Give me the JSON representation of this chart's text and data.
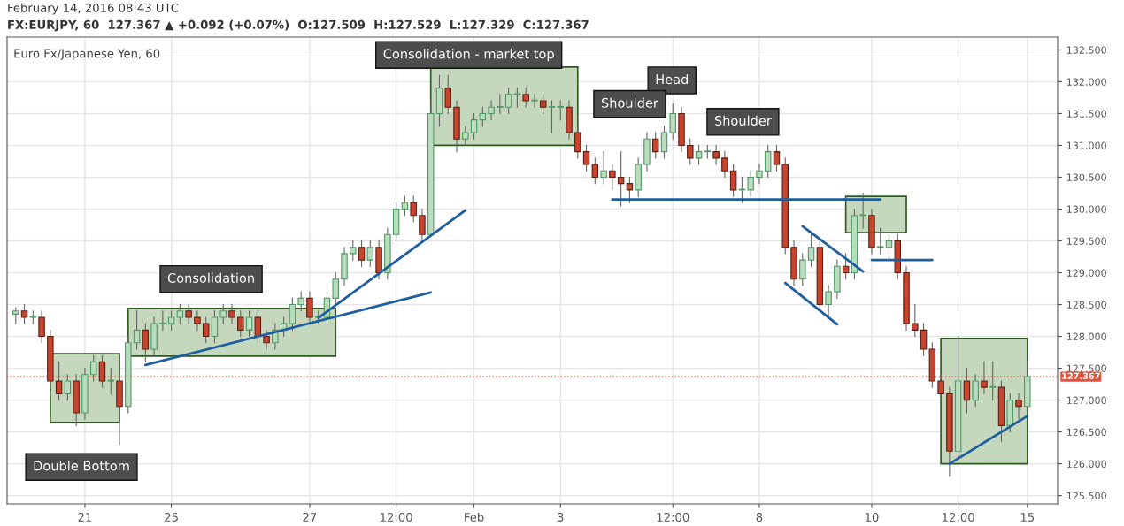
{
  "chart_data": {
    "type": "candlestick",
    "title": "Euro Fx/Japanese Yen, 60",
    "subtitle": "FX:EURJPY, 60  127.367 ▲ +0.092 (+0.07%)  O:127.509  H:127.529  L:127.329  C:127.367",
    "categories": [
      null,
      null,
      null,
      null,
      null,
      null,
      null,
      null,
      "21",
      null,
      null,
      null,
      null,
      null,
      null,
      null,
      null,
      null,
      "25",
      null,
      null,
      null,
      null,
      null,
      null,
      null,
      null,
      null,
      null,
      null,
      null,
      null,
      null,
      null,
      "27",
      null,
      null,
      null,
      null,
      null,
      null,
      null,
      null,
      null,
      "12:00",
      null,
      null,
      null,
      null,
      null,
      null,
      null,
      null,
      "Feb",
      null,
      null,
      null,
      null,
      null,
      null,
      null,
      null,
      null,
      "3",
      null,
      null,
      null,
      null,
      null,
      null,
      null,
      null,
      null,
      null,
      null,
      null,
      "12:00",
      null,
      null,
      null,
      null,
      null,
      null,
      null,
      null,
      null,
      "8",
      null,
      null,
      null,
      null,
      null,
      null,
      null,
      null,
      null,
      null,
      null,
      null,
      "10",
      null,
      null,
      null,
      null,
      null,
      null,
      null,
      null,
      null,
      "12:00",
      null,
      null,
      null,
      null,
      null,
      null,
      null,
      "15"
    ],
    "ohlc": [
      [
        128.35,
        128.45,
        128.2,
        128.4
      ],
      [
        128.4,
        128.5,
        128.2,
        128.3
      ],
      [
        128.3,
        128.4,
        128.2,
        128.3
      ],
      [
        128.3,
        128.4,
        127.9,
        128.0
      ],
      [
        128.0,
        128.1,
        127.2,
        127.3
      ],
      [
        127.3,
        127.6,
        127.0,
        127.1
      ],
      [
        127.1,
        127.4,
        127.0,
        127.3
      ],
      [
        127.3,
        127.4,
        126.6,
        126.8
      ],
      [
        126.8,
        127.5,
        126.7,
        127.4
      ],
      [
        127.4,
        127.7,
        127.3,
        127.6
      ],
      [
        127.6,
        127.7,
        127.2,
        127.3
      ],
      [
        127.3,
        127.5,
        127.1,
        127.3
      ],
      [
        127.3,
        127.4,
        126.3,
        126.9
      ],
      [
        126.9,
        128.0,
        126.8,
        127.9
      ],
      [
        127.9,
        128.4,
        127.8,
        128.1
      ],
      [
        128.1,
        128.2,
        127.6,
        127.8
      ],
      [
        127.8,
        128.3,
        127.7,
        128.2
      ],
      [
        128.2,
        128.4,
        128.1,
        128.2
      ],
      [
        128.2,
        128.4,
        128.1,
        128.3
      ],
      [
        128.3,
        128.5,
        128.2,
        128.4
      ],
      [
        128.4,
        128.5,
        128.2,
        128.3
      ],
      [
        128.3,
        128.4,
        128.1,
        128.2
      ],
      [
        128.2,
        128.3,
        127.9,
        128.0
      ],
      [
        128.0,
        128.4,
        127.9,
        128.3
      ],
      [
        128.3,
        128.5,
        128.2,
        128.4
      ],
      [
        128.4,
        128.5,
        128.2,
        128.3
      ],
      [
        128.3,
        128.4,
        128.0,
        128.1
      ],
      [
        128.1,
        128.4,
        128.0,
        128.3
      ],
      [
        128.3,
        128.4,
        127.9,
        128.0
      ],
      [
        128.0,
        128.1,
        127.8,
        127.9
      ],
      [
        127.9,
        128.2,
        127.8,
        128.1
      ],
      [
        128.1,
        128.3,
        128.0,
        128.2
      ],
      [
        128.2,
        128.6,
        128.1,
        128.5
      ],
      [
        128.5,
        128.7,
        128.4,
        128.6
      ],
      [
        128.6,
        128.7,
        128.2,
        128.3
      ],
      [
        128.3,
        128.4,
        128.2,
        128.3
      ],
      [
        128.3,
        128.7,
        128.2,
        128.6
      ],
      [
        128.6,
        129.0,
        128.5,
        128.9
      ],
      [
        128.9,
        129.4,
        128.8,
        129.3
      ],
      [
        129.3,
        129.5,
        129.2,
        129.4
      ],
      [
        129.4,
        129.5,
        129.1,
        129.2
      ],
      [
        129.2,
        129.5,
        129.1,
        129.4
      ],
      [
        129.4,
        129.5,
        128.9,
        129.0
      ],
      [
        129.0,
        129.7,
        128.9,
        129.6
      ],
      [
        129.6,
        130.1,
        129.5,
        130.0
      ],
      [
        130.0,
        130.2,
        129.9,
        130.1
      ],
      [
        130.1,
        130.2,
        129.8,
        129.9
      ],
      [
        129.9,
        130.0,
        129.5,
        129.6
      ],
      [
        129.6,
        131.7,
        129.6,
        131.5
      ],
      [
        131.5,
        132.1,
        131.3,
        131.9
      ],
      [
        131.9,
        132.1,
        131.5,
        131.6
      ],
      [
        131.6,
        131.7,
        130.9,
        131.1
      ],
      [
        131.1,
        131.3,
        131.0,
        131.2
      ],
      [
        131.2,
        131.5,
        131.1,
        131.4
      ],
      [
        131.4,
        131.6,
        131.3,
        131.5
      ],
      [
        131.5,
        131.7,
        131.4,
        131.6
      ],
      [
        131.6,
        131.8,
        131.5,
        131.6
      ],
      [
        131.6,
        131.9,
        131.5,
        131.8
      ],
      [
        131.8,
        131.9,
        131.6,
        131.8
      ],
      [
        131.8,
        131.9,
        131.6,
        131.7
      ],
      [
        131.7,
        131.8,
        131.6,
        131.7
      ],
      [
        131.7,
        131.8,
        131.5,
        131.6
      ],
      [
        131.6,
        131.7,
        131.2,
        131.6
      ],
      [
        131.6,
        131.7,
        131.4,
        131.6
      ],
      [
        131.6,
        131.7,
        131.1,
        131.2
      ],
      [
        131.2,
        131.3,
        130.8,
        130.9
      ],
      [
        130.9,
        131.0,
        130.6,
        130.7
      ],
      [
        130.7,
        130.8,
        130.4,
        130.5
      ],
      [
        130.5,
        130.9,
        130.4,
        130.6
      ],
      [
        130.6,
        130.7,
        130.3,
        130.5
      ],
      [
        130.5,
        130.9,
        130.05,
        130.4
      ],
      [
        130.4,
        130.5,
        130.1,
        130.3
      ],
      [
        130.3,
        130.8,
        130.2,
        130.7
      ],
      [
        130.7,
        131.2,
        130.6,
        131.1
      ],
      [
        131.1,
        131.2,
        130.8,
        130.9
      ],
      [
        130.9,
        131.3,
        130.8,
        131.2
      ],
      [
        131.2,
        131.65,
        131.1,
        131.5
      ],
      [
        131.5,
        131.6,
        130.9,
        131.0
      ],
      [
        131.0,
        131.1,
        130.7,
        130.8
      ],
      [
        130.8,
        131.0,
        130.7,
        130.9
      ],
      [
        130.9,
        131.0,
        130.8,
        130.9
      ],
      [
        130.9,
        131.0,
        130.7,
        130.8
      ],
      [
        130.8,
        130.9,
        130.5,
        130.6
      ],
      [
        130.6,
        130.7,
        130.2,
        130.3
      ],
      [
        130.3,
        130.5,
        130.1,
        130.3
      ],
      [
        130.3,
        130.6,
        130.2,
        130.5
      ],
      [
        130.5,
        130.7,
        130.4,
        130.6
      ],
      [
        130.6,
        131.0,
        130.5,
        130.9
      ],
      [
        130.9,
        131.0,
        130.6,
        130.7
      ],
      [
        130.7,
        130.8,
        129.3,
        129.4
      ],
      [
        129.4,
        129.5,
        128.8,
        128.9
      ],
      [
        128.9,
        129.3,
        128.8,
        129.2
      ],
      [
        129.2,
        129.6,
        129.1,
        129.4
      ],
      [
        129.4,
        129.5,
        128.4,
        128.5
      ],
      [
        128.5,
        128.8,
        128.3,
        128.7
      ],
      [
        128.7,
        129.2,
        128.6,
        129.1
      ],
      [
        129.1,
        129.3,
        128.9,
        129.0
      ],
      [
        129.0,
        130.0,
        128.9,
        129.9
      ],
      [
        129.9,
        130.25,
        129.7,
        129.9
      ],
      [
        129.9,
        130.0,
        129.3,
        129.4
      ],
      [
        129.4,
        129.7,
        129.3,
        129.4
      ],
      [
        129.4,
        129.6,
        129.2,
        129.5
      ],
      [
        129.5,
        129.6,
        128.9,
        129.0
      ],
      [
        129.0,
        129.1,
        128.1,
        128.2
      ],
      [
        128.2,
        128.5,
        128.0,
        128.1
      ],
      [
        128.1,
        128.2,
        127.7,
        127.8
      ],
      [
        127.8,
        127.9,
        127.2,
        127.3
      ],
      [
        127.3,
        127.4,
        127.0,
        127.1
      ],
      [
        127.1,
        127.2,
        125.8,
        126.2
      ],
      [
        126.2,
        128.0,
        126.1,
        127.3
      ],
      [
        127.3,
        127.5,
        126.8,
        127.0
      ],
      [
        127.0,
        127.4,
        126.9,
        127.3
      ],
      [
        127.3,
        127.6,
        127.1,
        127.2
      ],
      [
        127.2,
        127.6,
        127.0,
        127.2
      ],
      [
        127.2,
        127.3,
        126.35,
        126.6
      ],
      [
        126.6,
        127.1,
        126.5,
        127.0
      ],
      [
        127.0,
        127.1,
        126.7,
        126.9
      ],
      [
        126.9,
        127.6,
        126.8,
        127.37
      ]
    ],
    "series": [
      {
        "type": "line",
        "color": "#1f5fa0",
        "values": [
          null,
          null,
          null,
          null,
          null,
          null,
          null,
          null,
          null,
          null,
          null,
          null,
          null,
          null,
          null,
          127.55,
          null,
          null,
          null,
          null,
          null,
          null,
          null,
          null,
          null,
          null,
          null,
          null,
          null,
          null,
          null,
          null,
          null,
          null,
          null,
          null,
          null,
          null,
          null,
          null,
          null,
          null,
          null,
          null,
          null,
          null,
          null,
          null,
          128.69,
          null,
          null,
          null,
          null,
          null,
          null,
          null,
          null,
          null,
          null,
          null,
          null,
          null,
          null,
          null,
          null,
          null,
          null,
          null,
          null,
          null,
          null,
          null,
          null,
          null,
          null,
          null,
          null,
          null,
          null,
          null,
          null,
          null,
          null,
          null,
          null,
          null,
          null,
          null,
          null,
          null,
          null,
          null,
          null,
          null,
          null,
          null,
          null,
          null,
          null,
          null,
          null,
          null,
          null,
          null,
          null,
          null,
          null,
          null,
          null,
          null,
          null,
          null,
          null,
          null,
          null,
          null,
          null,
          null
        ]
      },
      {
        "type": "line",
        "color": "#1f5fa0",
        "values": [
          null,
          null,
          null,
          null,
          null,
          null,
          null,
          null,
          null,
          null,
          null,
          null,
          null,
          null,
          null,
          null,
          null,
          null,
          null,
          null,
          null,
          null,
          null,
          null,
          null,
          null,
          null,
          null,
          null,
          null,
          null,
          null,
          null,
          null,
          null,
          128.29,
          null,
          null,
          null,
          null,
          null,
          null,
          null,
          null,
          null,
          null,
          null,
          null,
          null,
          null,
          null,
          null,
          129.98,
          null,
          null,
          null,
          null,
          null,
          null,
          null,
          null,
          null,
          null,
          null,
          null,
          null,
          null,
          null,
          null,
          null,
          null,
          null,
          null,
          null,
          null,
          null,
          null,
          null,
          null,
          null,
          null,
          null,
          null,
          null,
          null,
          null,
          null,
          null,
          null,
          null,
          null,
          null,
          null,
          null,
          null,
          null,
          null,
          null,
          null,
          null,
          null,
          null,
          null,
          null,
          null,
          null,
          null,
          null,
          null,
          null,
          null,
          null,
          null,
          null,
          null,
          null,
          null,
          null
        ]
      },
      {
        "type": "line",
        "color": "#1f5fa0",
        "values": [
          null,
          null,
          null,
          null,
          null,
          null,
          null,
          null,
          null,
          null,
          null,
          null,
          null,
          null,
          null,
          null,
          null,
          null,
          null,
          null,
          null,
          null,
          null,
          null,
          null,
          null,
          null,
          null,
          null,
          null,
          null,
          null,
          null,
          null,
          null,
          null,
          null,
          null,
          null,
          null,
          null,
          null,
          null,
          null,
          null,
          null,
          null,
          null,
          null,
          null,
          null,
          null,
          null,
          null,
          null,
          null,
          null,
          null,
          null,
          null,
          null,
          null,
          null,
          null,
          null,
          null,
          null,
          null,
          null,
          130.15,
          null,
          null,
          null,
          null,
          null,
          null,
          null,
          null,
          null,
          null,
          null,
          null,
          null,
          null,
          null,
          null,
          null,
          null,
          null,
          null,
          null,
          null,
          null,
          null,
          null,
          null,
          null,
          null,
          null,
          null,
          130.15,
          null,
          null,
          null,
          null,
          null,
          null,
          null,
          null,
          null,
          null,
          null,
          null,
          null,
          null,
          null,
          null,
          null
        ]
      },
      {
        "type": "line",
        "color": "#1f5fa0",
        "values": [
          null,
          null,
          null,
          null,
          null,
          null,
          null,
          null,
          null,
          null,
          null,
          null,
          null,
          null,
          null,
          null,
          null,
          null,
          null,
          null,
          null,
          null,
          null,
          null,
          null,
          null,
          null,
          null,
          null,
          null,
          null,
          null,
          null,
          null,
          null,
          null,
          null,
          null,
          null,
          null,
          null,
          null,
          null,
          null,
          null,
          null,
          null,
          null,
          null,
          null,
          null,
          null,
          null,
          null,
          null,
          null,
          null,
          null,
          null,
          null,
          null,
          null,
          null,
          null,
          null,
          null,
          null,
          null,
          null,
          null,
          null,
          null,
          null,
          null,
          null,
          null,
          null,
          null,
          null,
          null,
          null,
          null,
          null,
          null,
          null,
          null,
          null,
          null,
          null,
          null,
          null,
          null,
          null,
          null,
          null,
          null,
          null,
          null,
          null,
          129.2,
          null,
          null,
          null,
          null,
          null,
          null,
          129.2,
          null,
          null,
          null,
          null,
          null,
          null,
          null,
          null,
          null,
          null,
          null
        ]
      },
      {
        "type": "line",
        "color": "#1f5fa0",
        "values": [
          null,
          null,
          null,
          null,
          null,
          null,
          null,
          null,
          null,
          null,
          null,
          null,
          null,
          null,
          null,
          null,
          null,
          null,
          null,
          null,
          null,
          null,
          null,
          null,
          null,
          null,
          null,
          null,
          null,
          null,
          null,
          null,
          null,
          null,
          null,
          null,
          null,
          null,
          null,
          null,
          null,
          null,
          null,
          null,
          null,
          null,
          null,
          null,
          null,
          null,
          null,
          null,
          null,
          null,
          null,
          null,
          null,
          null,
          null,
          null,
          null,
          null,
          null,
          null,
          null,
          null,
          null,
          null,
          null,
          null,
          null,
          null,
          null,
          null,
          null,
          null,
          null,
          null,
          null,
          null,
          null,
          null,
          null,
          null,
          null,
          null,
          null,
          null,
          null,
          null,
          null,
          129.73,
          null,
          null,
          null,
          null,
          null,
          null,
          129.02,
          null,
          null,
          null,
          null,
          null,
          null,
          null,
          null,
          null,
          null,
          null,
          null,
          null,
          null,
          null,
          null,
          null,
          null,
          null
        ]
      },
      {
        "type": "line",
        "color": "#1f5fa0",
        "values": [
          null,
          null,
          null,
          null,
          null,
          null,
          null,
          null,
          null,
          null,
          null,
          null,
          null,
          null,
          null,
          null,
          null,
          null,
          null,
          null,
          null,
          null,
          null,
          null,
          null,
          null,
          null,
          null,
          null,
          null,
          null,
          null,
          null,
          null,
          null,
          null,
          null,
          null,
          null,
          null,
          null,
          null,
          null,
          null,
          null,
          null,
          null,
          null,
          null,
          null,
          null,
          null,
          null,
          null,
          null,
          null,
          null,
          null,
          null,
          null,
          null,
          null,
          null,
          null,
          null,
          null,
          null,
          null,
          null,
          null,
          null,
          null,
          null,
          null,
          null,
          null,
          null,
          null,
          null,
          null,
          null,
          null,
          null,
          null,
          null,
          null,
          null,
          null,
          null,
          128.84,
          null,
          null,
          null,
          null,
          null,
          128.19,
          null,
          null,
          null,
          null,
          null,
          null,
          null,
          null,
          null,
          null,
          null,
          null,
          null,
          null,
          null,
          null,
          null,
          null,
          null,
          null,
          null,
          null
        ]
      },
      {
        "type": "line",
        "color": "#1f5fa0",
        "values": [
          null,
          null,
          null,
          null,
          null,
          null,
          null,
          null,
          null,
          null,
          null,
          null,
          null,
          null,
          null,
          null,
          null,
          null,
          null,
          null,
          null,
          null,
          null,
          null,
          null,
          null,
          null,
          null,
          null,
          null,
          null,
          null,
          null,
          null,
          null,
          null,
          null,
          null,
          null,
          null,
          null,
          null,
          null,
          null,
          null,
          null,
          null,
          null,
          null,
          null,
          null,
          null,
          null,
          null,
          null,
          null,
          null,
          null,
          null,
          null,
          null,
          null,
          null,
          null,
          null,
          null,
          null,
          null,
          null,
          null,
          null,
          null,
          null,
          null,
          null,
          null,
          null,
          null,
          null,
          null,
          null,
          null,
          null,
          null,
          null,
          null,
          null,
          null,
          null,
          null,
          null,
          null,
          null,
          null,
          null,
          null,
          null,
          null,
          null,
          null,
          null,
          null,
          null,
          null,
          null,
          null,
          null,
          null,
          126.0,
          null,
          null,
          null,
          null,
          null,
          null,
          null,
          null,
          126.75
        ]
      }
    ],
    "ref_lines": [
      {
        "axis": "y",
        "value": 127.367,
        "label": "127.367",
        "color": "#e0533b",
        "line_style": "dotted"
      }
    ],
    "annotations": [
      "February 14, 2016 08:43 UTC",
      "Double Bottom",
      "Consolidation",
      "Consolidation - market top",
      "Head",
      "Shoulder",
      "Shoulder"
    ],
    "ylim": [
      125.37,
      132.7
    ],
    "yticks": [
      {
        "value": 125.5,
        "label": "125.500"
      },
      {
        "value": 126,
        "label": "126.000"
      },
      {
        "value": 126.5,
        "label": "126.500"
      },
      {
        "value": 127,
        "label": "127.000"
      },
      {
        "value": 127.5,
        "label": "127.500"
      },
      {
        "value": 128,
        "label": "128.000"
      },
      {
        "value": 128.5,
        "label": "128.500"
      },
      {
        "value": 129,
        "label": "129.000"
      },
      {
        "value": 129.5,
        "label": "129.500"
      },
      {
        "value": 130,
        "label": "130.000"
      },
      {
        "value": 130.5,
        "label": "130.500"
      },
      {
        "value": 131,
        "label": "131.000"
      },
      {
        "value": 131.5,
        "label": "131.500"
      },
      {
        "value": 132,
        "label": "132.000"
      },
      {
        "value": 132.5,
        "label": "132.500"
      }
    ],
    "grid": true
  }
}
